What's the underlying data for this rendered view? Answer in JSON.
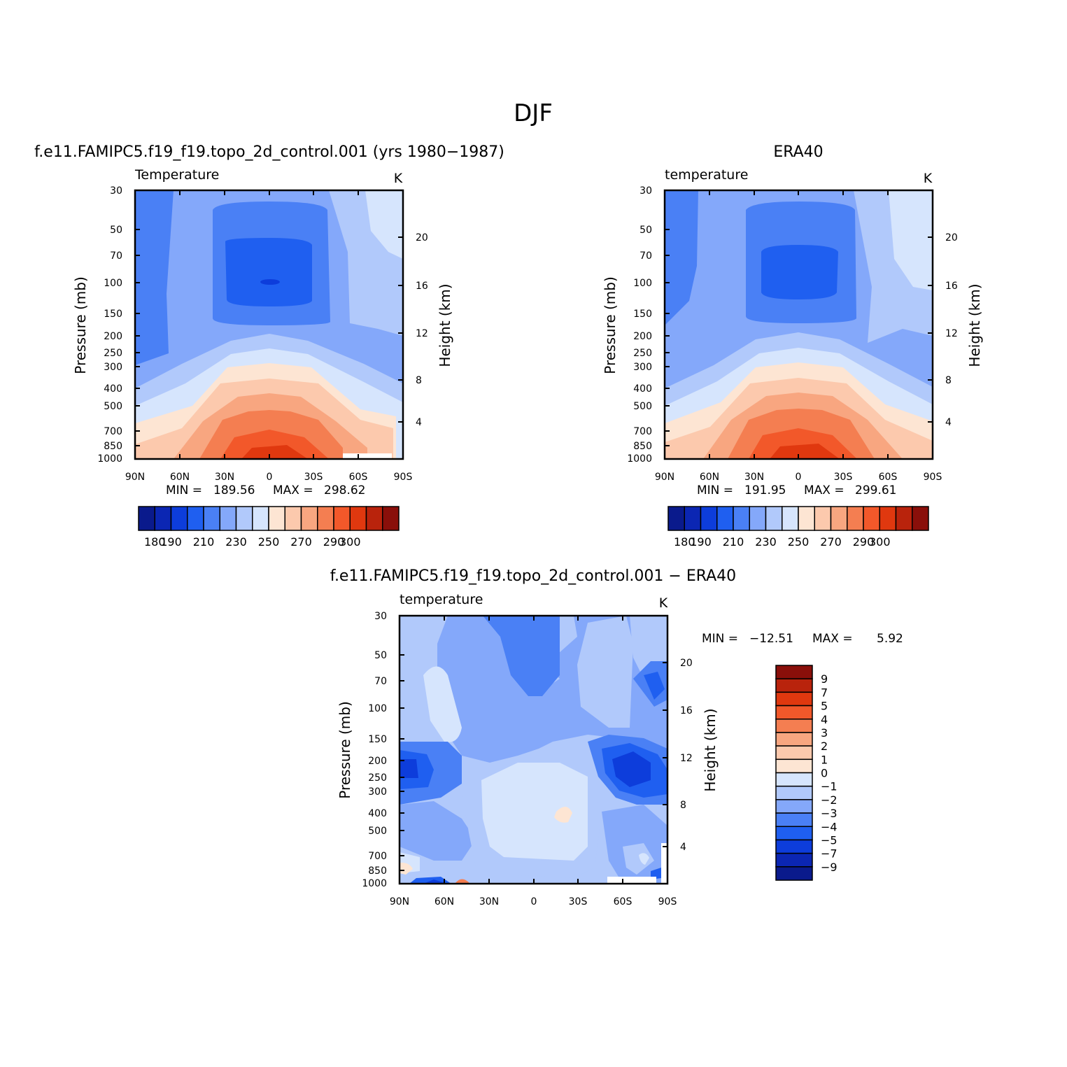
{
  "figure": {
    "title": "DJF"
  },
  "chart_data": [
    {
      "id": "model",
      "type": "heatmap",
      "subtype": "filled-contour latitude-pressure cross section",
      "title": "f.e11.FAMIPC5.f19_f19.topo_2d_control.001 (yrs 1980−1987)",
      "variable": "Temperature",
      "units": "K",
      "ylabel": "Pressure (mb)",
      "ylabel_right": "Height (km)",
      "x_ticks": [
        "90N",
        "60N",
        "30N",
        "0",
        "30S",
        "60S",
        "90S"
      ],
      "y_ticks": [
        "30",
        "50",
        "70",
        "100",
        "150",
        "200",
        "250",
        "300",
        "400",
        "500",
        "700",
        "850",
        "1000"
      ],
      "y_ticks_right": [
        "20",
        "16",
        "12",
        "8",
        "4"
      ],
      "y_scale": "log pressure",
      "ylim": [
        1000,
        30
      ],
      "xlim": [
        "90N",
        "90S"
      ],
      "min_label": "MIN =",
      "min": "189.56",
      "max_label": "MAX =",
      "max": "298.62",
      "colorbar": {
        "orientation": "horizontal",
        "levels": [
          180,
          190,
          200,
          210,
          220,
          230,
          240,
          250,
          260,
          270,
          280,
          290,
          300
        ],
        "tick_labels": [
          "180",
          "190",
          "210",
          "230",
          "250",
          "270",
          "290",
          "300"
        ],
        "colors": [
          "#0a1a8c",
          "#0b26b3",
          "#0d3ddb",
          "#1f5ff0",
          "#4a80f5",
          "#84a8fa",
          "#b1c9fb",
          "#d6e5fd",
          "#fde5d3",
          "#fcc9ad",
          "#f8a680",
          "#f47e51",
          "#f2582a",
          "#e0380f",
          "#b9230c",
          "#8a0f0a"
        ]
      }
    },
    {
      "id": "obs",
      "type": "heatmap",
      "subtype": "filled-contour latitude-pressure cross section",
      "title": "ERA40",
      "variable": "temperature",
      "units": "K",
      "ylabel": "Pressure (mb)",
      "ylabel_right": "Height (km)",
      "x_ticks": [
        "90N",
        "60N",
        "30N",
        "0",
        "30S",
        "60S",
        "90S"
      ],
      "y_ticks": [
        "30",
        "50",
        "70",
        "100",
        "150",
        "200",
        "250",
        "300",
        "400",
        "500",
        "700",
        "850",
        "1000"
      ],
      "y_ticks_right": [
        "20",
        "16",
        "12",
        "8",
        "4"
      ],
      "y_scale": "log pressure",
      "ylim": [
        1000,
        30
      ],
      "xlim": [
        "90N",
        "90S"
      ],
      "min_label": "MIN =",
      "min": "191.95",
      "max_label": "MAX =",
      "max": "299.61",
      "colorbar": {
        "orientation": "horizontal",
        "levels": [
          180,
          190,
          200,
          210,
          220,
          230,
          240,
          250,
          260,
          270,
          280,
          290,
          300
        ],
        "tick_labels": [
          "180",
          "190",
          "210",
          "230",
          "250",
          "270",
          "290",
          "300"
        ],
        "colors": [
          "#0a1a8c",
          "#0b26b3",
          "#0d3ddb",
          "#1f5ff0",
          "#4a80f5",
          "#84a8fa",
          "#b1c9fb",
          "#d6e5fd",
          "#fde5d3",
          "#fcc9ad",
          "#f8a680",
          "#f47e51",
          "#f2582a",
          "#e0380f",
          "#b9230c",
          "#8a0f0a"
        ]
      }
    },
    {
      "id": "diff",
      "type": "heatmap",
      "subtype": "filled-contour latitude-pressure cross section (difference)",
      "title": "f.e11.FAMIPC5.f19_f19.topo_2d_control.001 − ERA40",
      "variable": "temperature",
      "units": "K",
      "ylabel": "Pressure (mb)",
      "ylabel_right": "Height (km)",
      "x_ticks": [
        "90N",
        "60N",
        "30N",
        "0",
        "30S",
        "60S",
        "90S"
      ],
      "y_ticks": [
        "30",
        "50",
        "70",
        "100",
        "150",
        "200",
        "250",
        "300",
        "400",
        "500",
        "700",
        "850",
        "1000"
      ],
      "y_ticks_right": [
        "20",
        "16",
        "12",
        "8",
        "4"
      ],
      "y_scale": "log pressure",
      "ylim": [
        1000,
        30
      ],
      "xlim": [
        "90N",
        "90S"
      ],
      "min_label": "MIN =",
      "min": "−12.51",
      "max_label": "MAX =",
      "max": "5.92",
      "colorbar": {
        "orientation": "vertical",
        "tick_labels": [
          "9",
          "7",
          "5",
          "4",
          "3",
          "2",
          "1",
          "0",
          "−1",
          "−2",
          "−3",
          "−4",
          "−5",
          "−7",
          "−9"
        ],
        "colors": [
          "#8a0f0a",
          "#b9230c",
          "#e0380f",
          "#f2582a",
          "#f47e51",
          "#f8a680",
          "#fcc9ad",
          "#fde5d3",
          "#d6e5fd",
          "#b1c9fb",
          "#84a8fa",
          "#4a80f5",
          "#1f5ff0",
          "#0d3ddb",
          "#0b26b3",
          "#0a1a8c"
        ]
      }
    }
  ]
}
